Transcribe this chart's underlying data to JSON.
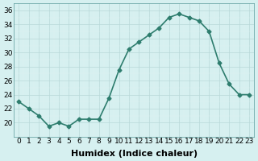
{
  "x": [
    0,
    1,
    2,
    3,
    4,
    5,
    6,
    7,
    8,
    9,
    10,
    11,
    12,
    13,
    14,
    15,
    16,
    17,
    18,
    19,
    20,
    21,
    22,
    23
  ],
  "y": [
    23,
    22,
    21,
    19.5,
    20,
    19.5,
    20.5,
    20.5,
    20.5,
    23.5,
    27.5,
    30.5,
    31.5,
    32.5,
    33.5,
    35,
    35.5,
    35,
    34.5,
    33,
    28.5,
    25.5,
    24,
    24
  ],
  "line_color": "#2e7d6e",
  "marker": "D",
  "marker_size": 2.5,
  "bg_color": "#d6f0f0",
  "xlabel": "Humidex (Indice chaleur)",
  "ylim": [
    18,
    37
  ],
  "xlim": [
    -0.5,
    23.5
  ],
  "yticks": [
    20,
    22,
    24,
    26,
    28,
    30,
    32,
    34,
    36
  ],
  "xticks": [
    0,
    1,
    2,
    3,
    4,
    5,
    6,
    7,
    8,
    9,
    10,
    11,
    12,
    13,
    14,
    15,
    16,
    17,
    18,
    19,
    20,
    21,
    22,
    23
  ],
  "xlabel_fontsize": 8,
  "tick_fontsize": 6.5,
  "line_width": 1.2
}
